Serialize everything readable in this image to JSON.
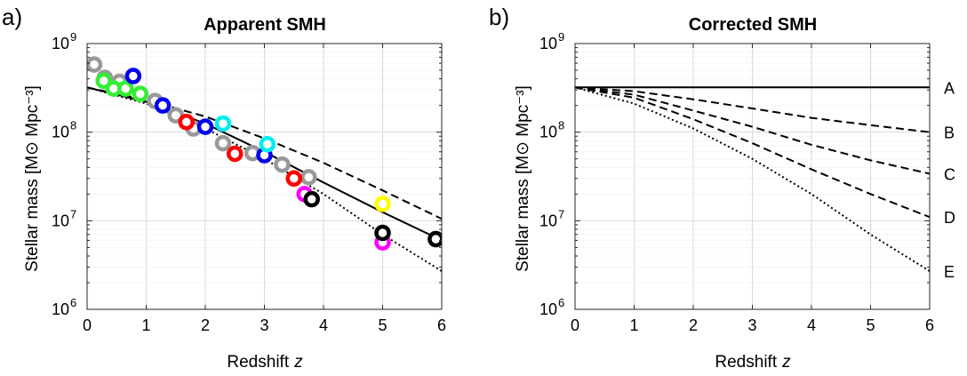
{
  "figure": {
    "panels": [
      {
        "panel_label": "a)",
        "title": "Apparent SMH",
        "xlabel": "Redshift",
        "xlabel_var": "z",
        "ylabel": "Stellar mass [M⊙ Mpc⁻³]"
      },
      {
        "panel_label": "b)",
        "title": "Corrected SMH",
        "xlabel": "Redshift",
        "xlabel_var": "z",
        "ylabel": "Stellar mass [M⊙ Mpc⁻³]"
      }
    ]
  },
  "chart_data": [
    {
      "type": "scatter",
      "panel_label": "a)",
      "title": "Apparent SMH",
      "xlabel": "Redshift z",
      "ylabel": "Stellar mass [M⊙ Mpc⁻³]",
      "xlim": [
        0,
        6
      ],
      "ylim": [
        1000000,
        1000000000
      ],
      "yscale": "log",
      "xticks": [
        "0",
        "1",
        "2",
        "3",
        "4",
        "5",
        "6"
      ],
      "yticks": [
        "10^6",
        "10^7",
        "10^8",
        "10^9"
      ],
      "grid": true,
      "lines": [
        {
          "style": "dashed",
          "x": [
            0,
            1,
            2,
            3,
            4,
            5,
            6
          ],
          "y": [
            320000000,
            230000000,
            150000000,
            85000000,
            45000000,
            22000000,
            10500000
          ]
        },
        {
          "style": "solid",
          "x": [
            0,
            1,
            2,
            3,
            4,
            5,
            6
          ],
          "y": [
            320000000,
            220000000,
            125000000,
            60000000,
            27000000,
            12500000,
            6000000
          ]
        },
        {
          "style": "dotted",
          "x": [
            0,
            1,
            2,
            3,
            4,
            5,
            6
          ],
          "y": [
            320000000,
            210000000,
            110000000,
            50000000,
            20000000,
            7000000,
            2700000
          ]
        }
      ],
      "series": [
        {
          "color": "#999999",
          "points": [
            [
              0.12,
              580000000
            ],
            [
              0.3,
              410000000
            ],
            [
              0.55,
              370000000
            ],
            [
              1.15,
              225000000
            ],
            [
              1.5,
              155000000
            ],
            [
              1.8,
              110000000
            ],
            [
              2.3,
              75000000
            ],
            [
              2.8,
              58000000
            ],
            [
              3.3,
              43000000
            ],
            [
              3.75,
              31000000
            ]
          ]
        },
        {
          "color": "#33ee33",
          "points": [
            [
              0.28,
              380000000
            ],
            [
              0.45,
              310000000
            ],
            [
              0.65,
              310000000
            ],
            [
              0.9,
              270000000
            ]
          ]
        },
        {
          "color": "#0000ee",
          "points": [
            [
              0.78,
              430000000
            ],
            [
              1.28,
              200000000
            ],
            [
              2.0,
              115000000
            ],
            [
              3.0,
              55000000
            ]
          ]
        },
        {
          "color": "#ff0000",
          "points": [
            [
              1.68,
              130000000
            ],
            [
              2.5,
              57000000
            ],
            [
              3.5,
              30000000
            ]
          ]
        },
        {
          "color": "#00eeee",
          "points": [
            [
              2.3,
              125000000
            ],
            [
              3.05,
              73000000
            ]
          ]
        },
        {
          "color": "#ff00ff",
          "points": [
            [
              3.68,
              20000000
            ],
            [
              5.0,
              5700000
            ]
          ]
        },
        {
          "color": "#000000",
          "points": [
            [
              3.8,
              17500000
            ],
            [
              5.0,
              7300000
            ],
            [
              5.9,
              6200000
            ]
          ]
        },
        {
          "color": "#ffff00",
          "points": [
            [
              5.0,
              15500000
            ]
          ]
        }
      ]
    },
    {
      "type": "line",
      "panel_label": "b)",
      "title": "Corrected SMH",
      "xlabel": "Redshift z",
      "ylabel": "Stellar mass [M⊙ Mpc⁻³]",
      "xlim": [
        0,
        6
      ],
      "ylim": [
        1000000,
        1000000000
      ],
      "yscale": "log",
      "xticks": [
        "0",
        "1",
        "2",
        "3",
        "4",
        "5",
        "6"
      ],
      "yticks": [
        "10^6",
        "10^7",
        "10^8",
        "10^9"
      ],
      "grid": true,
      "series": [
        {
          "name": "A",
          "style": "solid",
          "x": [
            0,
            1,
            2,
            3,
            4,
            5,
            6
          ],
          "y": [
            320000000,
            320000000,
            320000000,
            320000000,
            320000000,
            320000000,
            320000000
          ]
        },
        {
          "name": "B",
          "style": "dashed",
          "x": [
            0,
            1,
            2,
            3,
            4,
            5,
            6
          ],
          "y": [
            320000000,
            290000000,
            235000000,
            185000000,
            145000000,
            120000000,
            100000000
          ]
        },
        {
          "name": "C",
          "style": "dashed",
          "x": [
            0,
            1,
            2,
            3,
            4,
            5,
            6
          ],
          "y": [
            320000000,
            265000000,
            175000000,
            115000000,
            72000000,
            48000000,
            34000000
          ]
        },
        {
          "name": "D",
          "style": "dashed",
          "x": [
            0,
            1,
            2,
            3,
            4,
            5,
            6
          ],
          "y": [
            320000000,
            245000000,
            140000000,
            75000000,
            38000000,
            20000000,
            11000000
          ]
        },
        {
          "name": "E",
          "style": "dotted",
          "x": [
            0,
            1,
            2,
            3,
            4,
            5,
            6
          ],
          "y": [
            320000000,
            210000000,
            110000000,
            50000000,
            20000000,
            7000000,
            2700000
          ]
        }
      ]
    }
  ]
}
